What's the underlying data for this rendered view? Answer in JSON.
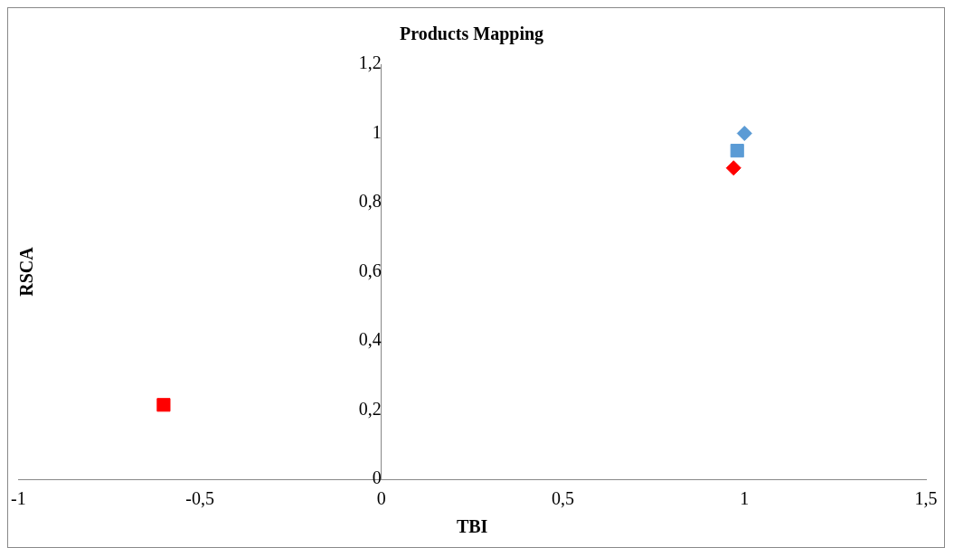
{
  "chart_data": {
    "type": "scatter",
    "title": "Products Mapping",
    "xlabel": "TBI",
    "ylabel": "RSCA",
    "xlim": [
      -1,
      1.5
    ],
    "xticks": [
      {
        "value": -1,
        "label": "-1"
      },
      {
        "value": -0.5,
        "label": "-0,5"
      },
      {
        "value": 0,
        "label": "0"
      },
      {
        "value": 0.5,
        "label": "0,5"
      },
      {
        "value": 1,
        "label": "1"
      },
      {
        "value": 1.5,
        "label": "1,5"
      }
    ],
    "ylim": [
      0,
      1.2
    ],
    "yticks": [
      {
        "value": 0,
        "label": "0"
      },
      {
        "value": 0.2,
        "label": "0,2"
      },
      {
        "value": 0.4,
        "label": "0,4"
      },
      {
        "value": 0.6,
        "label": "0,6"
      },
      {
        "value": 0.8,
        "label": "0,8"
      },
      {
        "value": 1,
        "label": "1"
      },
      {
        "value": 1.2,
        "label": "1,2"
      }
    ],
    "grid": false,
    "legend": false,
    "series": [
      {
        "color": "#ff0000",
        "marker": "square",
        "x": [
          -0.6
        ],
        "values": [
          0.215
        ]
      },
      {
        "color": "#ff0000",
        "marker": "diamond",
        "x": [
          0.97
        ],
        "values": [
          0.9
        ]
      },
      {
        "color": "#5b9bd5",
        "marker": "square",
        "x": [
          0.98
        ],
        "values": [
          0.95
        ]
      },
      {
        "color": "#5b9bd5",
        "marker": "diamond",
        "x": [
          1.0
        ],
        "values": [
          1.0
        ]
      }
    ]
  }
}
